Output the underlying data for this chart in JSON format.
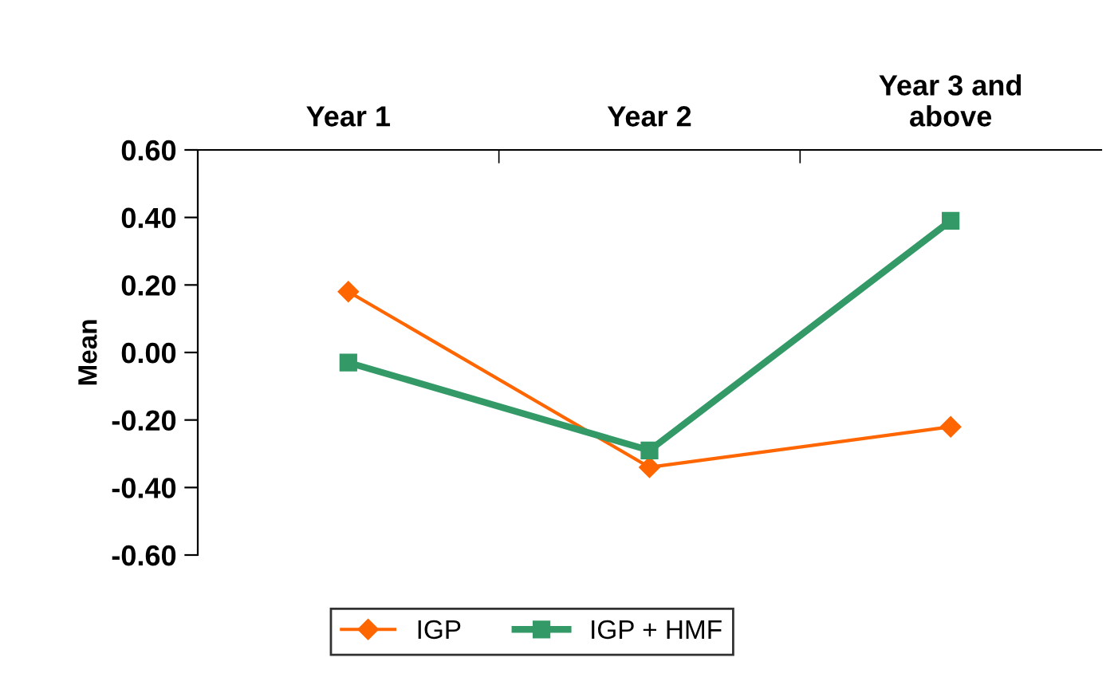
{
  "chart_data": {
    "type": "line",
    "ylabel": "Mean",
    "categories": [
      "Year 1",
      "Year 2",
      "Year 3 and above"
    ],
    "series": [
      {
        "name": "IGP",
        "color": "#ff6600",
        "values": [
          0.18,
          -0.34,
          -0.22
        ],
        "marker": "diamond"
      },
      {
        "name": "IGP + HMF",
        "color": "#339966",
        "values": [
          -0.03,
          -0.29,
          0.39
        ],
        "marker": "square"
      }
    ],
    "ylim": [
      -0.6,
      0.6
    ],
    "yticks": [
      {
        "value": -0.6,
        "label": "-0.60"
      },
      {
        "value": -0.4,
        "label": "-0.40"
      },
      {
        "value": -0.2,
        "label": "-0.20"
      },
      {
        "value": 0,
        "label": "0.00"
      },
      {
        "value": 0.2,
        "label": "0.20"
      },
      {
        "value": 0.4,
        "label": "0.40"
      },
      {
        "value": 0.6,
        "label": "0.60"
      }
    ],
    "grid": false,
    "legend": "bottom"
  }
}
